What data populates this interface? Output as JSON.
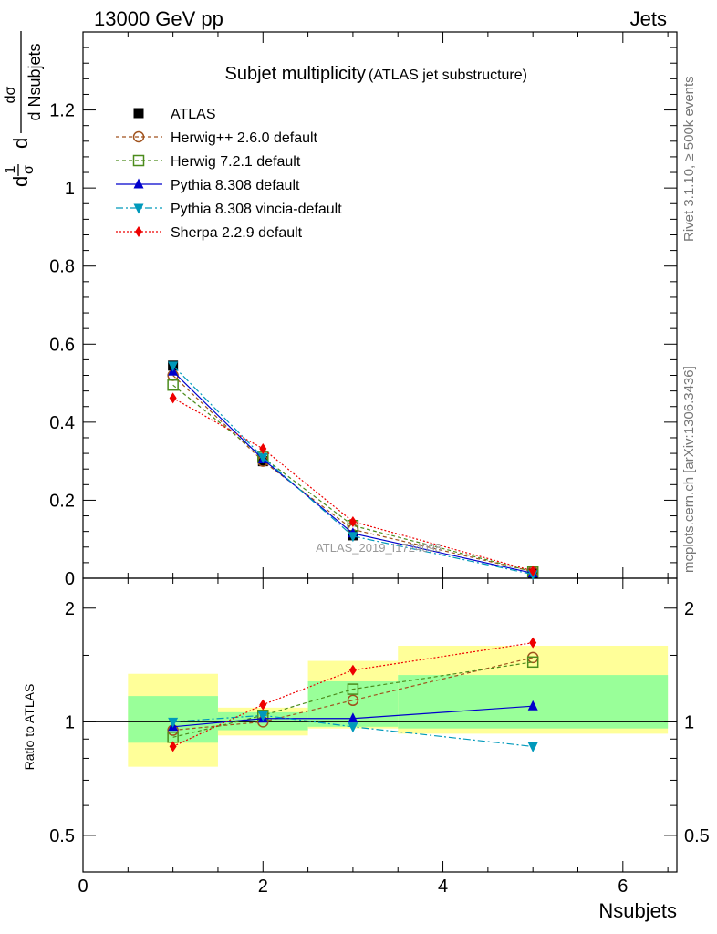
{
  "header": {
    "left": "13000 GeV pp",
    "right": "Jets"
  },
  "side_labels": {
    "rivet": "Rivet 3.1.10, ≥ 500k events",
    "mcplots": "mcplots.cern.ch [arXiv:1306.3436]"
  },
  "chart_data": {
    "type": "line",
    "title": "Subjet multiplicity",
    "subtitle": "(ATLAS jet substructure)",
    "watermark": "ATLAS_2019_I1724098",
    "xlabel": "Nsubjets",
    "ylabel": "1/σ dσ/d Nsubjets",
    "ylabel_parts": {
      "top": "dσ",
      "bottom": "d Nsubjets",
      "pre_top": "1",
      "pre_bottom": "σ",
      "d": "d"
    },
    "xlim": [
      0,
      6.6
    ],
    "ylim": [
      0,
      1.4
    ],
    "x_ticks": [
      "0",
      "2",
      "4",
      "6"
    ],
    "y_ticks": [
      "0",
      "0.2",
      "0.4",
      "0.6",
      "0.8",
      "1",
      "1.2"
    ],
    "x": [
      1,
      2,
      3,
      5
    ],
    "bins": [
      [
        0.5,
        1.5
      ],
      [
        1.5,
        2.5
      ],
      [
        2.5,
        3.5
      ],
      [
        3.5,
        6.5
      ]
    ],
    "series": [
      {
        "name": "ATLAS",
        "values": [
          0.545,
          0.3,
          0.11,
          0.012
        ],
        "color": "#000000",
        "marker": "square-filled",
        "dash": "none"
      },
      {
        "name": "Herwig++ 2.6.0 default",
        "values": [
          0.52,
          0.3,
          0.125,
          0.017
        ],
        "color": "#a0521d",
        "marker": "circle-open",
        "dash": "4,3"
      },
      {
        "name": "Herwig 7.2.1 default",
        "values": [
          0.495,
          0.31,
          0.135,
          0.017
        ],
        "color": "#4c8c1c",
        "marker": "square-open",
        "dash": "4,3"
      },
      {
        "name": "Pythia 8.308 default",
        "values": [
          0.53,
          0.305,
          0.115,
          0.013
        ],
        "color": "#0000cc",
        "marker": "triangle-up",
        "dash": "none"
      },
      {
        "name": "Pythia 8.308 vincia-default",
        "values": [
          0.545,
          0.31,
          0.108,
          0.01
        ],
        "color": "#0099bb",
        "marker": "triangle-down",
        "dash": "8,3,2,3"
      },
      {
        "name": "Sherpa 2.2.9 default",
        "values": [
          0.462,
          0.332,
          0.145,
          0.019
        ],
        "color": "#ee0000",
        "marker": "diamond",
        "dash": "2,2"
      }
    ],
    "ratio": {
      "ylabel": "Ratio to ATLAS",
      "ylim_log": [
        0.4,
        2.4
      ],
      "y_ticks": [
        "0.5",
        "1",
        "2"
      ],
      "band_outer": [
        [
          0.76,
          1.34
        ],
        [
          0.92,
          1.09
        ],
        [
          0.96,
          1.45
        ],
        [
          0.93,
          1.59
        ]
      ],
      "band_inner": [
        [
          0.88,
          1.17
        ],
        [
          0.95,
          1.06
        ],
        [
          0.97,
          1.28
        ],
        [
          0.96,
          1.33
        ]
      ],
      "series": [
        {
          "name": "Herwig++ 2.6.0 default",
          "values": [
            0.95,
            1.0,
            1.14,
            1.48
          ]
        },
        {
          "name": "Herwig 7.2.1 default",
          "values": [
            0.91,
            1.04,
            1.22,
            1.44
          ]
        },
        {
          "name": "Pythia 8.308 default",
          "values": [
            0.97,
            1.02,
            1.02,
            1.1
          ]
        },
        {
          "name": "Pythia 8.308 vincia-default",
          "values": [
            1.0,
            1.04,
            0.97,
            0.86
          ]
        },
        {
          "name": "Sherpa 2.2.9 default",
          "values": [
            0.86,
            1.11,
            1.37,
            1.62
          ]
        }
      ]
    }
  }
}
